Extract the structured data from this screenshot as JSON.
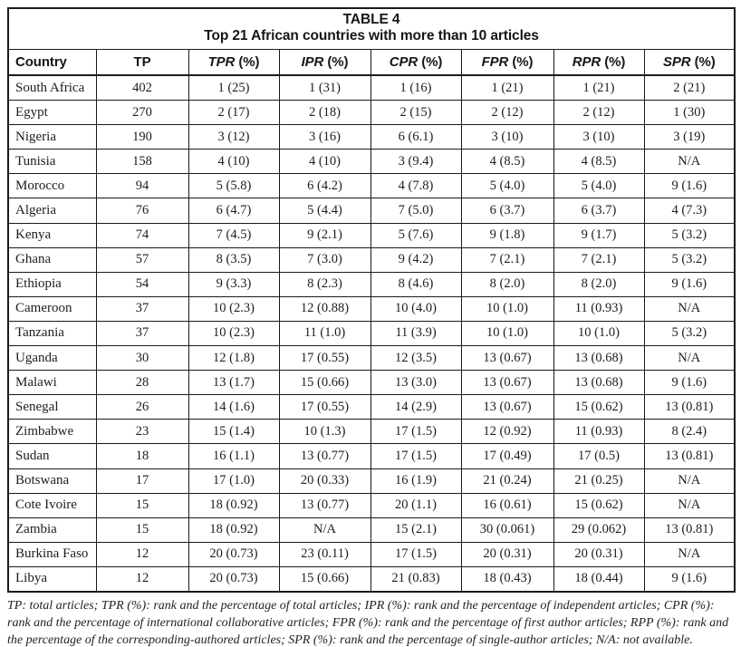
{
  "table": {
    "title": "TABLE 4",
    "subtitle": "Top 21 African countries with more than 10 articles",
    "columns": [
      {
        "id": "country",
        "label": "Country",
        "italic": false,
        "unit": ""
      },
      {
        "id": "tp",
        "label": "TP",
        "italic": false,
        "unit": ""
      },
      {
        "id": "tpr",
        "label": "TPR",
        "italic": true,
        "unit": "(%)"
      },
      {
        "id": "ipr",
        "label": "IPR",
        "italic": true,
        "unit": "(%)"
      },
      {
        "id": "cpr",
        "label": "CPR",
        "italic": true,
        "unit": "(%)"
      },
      {
        "id": "fpr",
        "label": "FPR",
        "italic": true,
        "unit": "(%)"
      },
      {
        "id": "rpr",
        "label": "RPR",
        "italic": true,
        "unit": "(%)"
      },
      {
        "id": "spr",
        "label": "SPR",
        "italic": true,
        "unit": "(%)"
      }
    ],
    "rows": [
      [
        "South Africa",
        "402",
        "1 (25)",
        "1 (31)",
        "1 (16)",
        "1 (21)",
        "1 (21)",
        "2 (21)"
      ],
      [
        "Egypt",
        "270",
        "2 (17)",
        "2 (18)",
        "2 (15)",
        "2 (12)",
        "2 (12)",
        "1 (30)"
      ],
      [
        "Nigeria",
        "190",
        "3 (12)",
        "3 (16)",
        "6 (6.1)",
        "3 (10)",
        "3 (10)",
        "3 (19)"
      ],
      [
        "Tunisia",
        "158",
        "4 (10)",
        "4 (10)",
        "3 (9.4)",
        "4 (8.5)",
        "4 (8.5)",
        "N/A"
      ],
      [
        "Morocco",
        "94",
        "5 (5.8)",
        "6 (4.2)",
        "4 (7.8)",
        "5 (4.0)",
        "5 (4.0)",
        "9 (1.6)"
      ],
      [
        "Algeria",
        "76",
        "6 (4.7)",
        "5 (4.4)",
        "7 (5.0)",
        "6 (3.7)",
        "6 (3.7)",
        "4 (7.3)"
      ],
      [
        "Kenya",
        "74",
        "7 (4.5)",
        "9 (2.1)",
        "5 (7.6)",
        "9 (1.8)",
        "9 (1.7)",
        "5 (3.2)"
      ],
      [
        "Ghana",
        "57",
        "8 (3.5)",
        "7 (3.0)",
        "9 (4.2)",
        "7 (2.1)",
        "7 (2.1)",
        "5 (3.2)"
      ],
      [
        "Ethiopia",
        "54",
        "9 (3.3)",
        "8 (2.3)",
        "8 (4.6)",
        "8 (2.0)",
        "8 (2.0)",
        "9 (1.6)"
      ],
      [
        "Cameroon",
        "37",
        "10 (2.3)",
        "12 (0.88)",
        "10 (4.0)",
        "10 (1.0)",
        "11 (0.93)",
        "N/A"
      ],
      [
        "Tanzania",
        "37",
        "10 (2.3)",
        "11 (1.0)",
        "11 (3.9)",
        "10 (1.0)",
        "10 (1.0)",
        "5 (3.2)"
      ],
      [
        "Uganda",
        "30",
        "12 (1.8)",
        "17 (0.55)",
        "12 (3.5)",
        "13 (0.67)",
        "13 (0.68)",
        "N/A"
      ],
      [
        "Malawi",
        "28",
        "13 (1.7)",
        "15 (0.66)",
        "13 (3.0)",
        "13 (0.67)",
        "13 (0.68)",
        "9 (1.6)"
      ],
      [
        "Senegal",
        "26",
        "14 (1.6)",
        "17 (0.55)",
        "14 (2.9)",
        "13 (0.67)",
        "15 (0.62)",
        "13 (0.81)"
      ],
      [
        "Zimbabwe",
        "23",
        "15 (1.4)",
        "10 (1.3)",
        "17 (1.5)",
        "12 (0.92)",
        "11 (0.93)",
        "8 (2.4)"
      ],
      [
        "Sudan",
        "18",
        "16 (1.1)",
        "13 (0.77)",
        "17 (1.5)",
        "17 (0.49)",
        "17 (0.5)",
        "13 (0.81)"
      ],
      [
        "Botswana",
        "17",
        "17 (1.0)",
        "20 (0.33)",
        "16 (1.9)",
        "21 (0.24)",
        "21 (0.25)",
        "N/A"
      ],
      [
        "Cote Ivoire",
        "15",
        "18 (0.92)",
        "13 (0.77)",
        "20 (1.1)",
        "16 (0.61)",
        "15 (0.62)",
        "N/A"
      ],
      [
        "Zambia",
        "15",
        "18 (0.92)",
        "N/A",
        "15 (2.1)",
        "30 (0.061)",
        "29 (0.062)",
        "13 (0.81)"
      ],
      [
        "Burkina Faso",
        "12",
        "20 (0.73)",
        "23 (0.11)",
        "17 (1.5)",
        "20 (0.31)",
        "20 (0.31)",
        "N/A"
      ],
      [
        "Libya",
        "12",
        "20 (0.73)",
        "15 (0.66)",
        "21 (0.83)",
        "18 (0.43)",
        "18 (0.44)",
        "9 (1.6)"
      ]
    ]
  },
  "footnote": "TP: total articles; TPR (%): rank and the percentage of total articles; IPR (%): rank and the percentage of independent articles; CPR (%): rank and the percentage of international collaborative articles; FPR (%): rank and the percentage of first author articles; RPP (%): rank and the percentage of the corresponding-authored articles; SPR (%): rank and the percentage of single-author articles; N/A: not available.",
  "colors": {
    "border": "#1a1a1a",
    "text": "#1d1d1f",
    "background": "#ffffff"
  }
}
